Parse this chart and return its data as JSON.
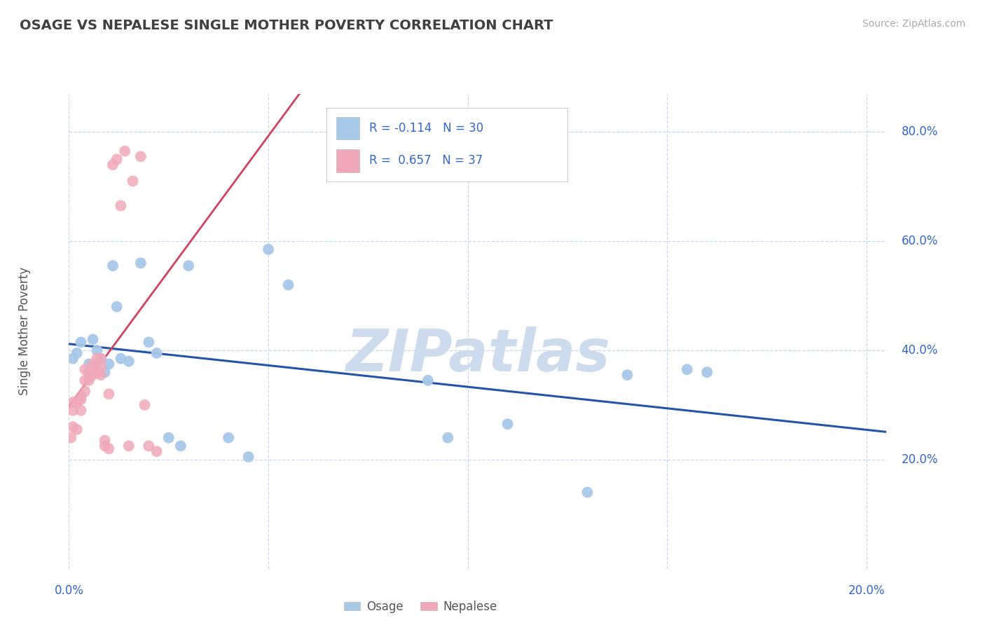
{
  "title": "OSAGE VS NEPALESE SINGLE MOTHER POVERTY CORRELATION CHART",
  "source": "Source: ZipAtlas.com",
  "ylabel": "Single Mother Poverty",
  "xlim": [
    0.0,
    0.205
  ],
  "ylim": [
    0.0,
    0.87
  ],
  "osage_R": -0.114,
  "osage_N": 30,
  "nepalese_R": 0.657,
  "nepalese_N": 37,
  "osage_color": "#a8c8e8",
  "nepalese_color": "#f0a8b8",
  "osage_line_color": "#2255aa",
  "nepalese_line_color": "#d04060",
  "text_blue": "#3366cc",
  "title_color": "#404040",
  "source_color": "#aaaaaa",
  "watermark_color": "#ccdcee",
  "grid_color": "#c8d8e8",
  "tick_color": "#3366cc",
  "osage_x": [
    0.001,
    0.002,
    0.003,
    0.005,
    0.006,
    0.007,
    0.008,
    0.009,
    0.01,
    0.011,
    0.012,
    0.013,
    0.015,
    0.018,
    0.02,
    0.022,
    0.025,
    0.028,
    0.03,
    0.04,
    0.045,
    0.05,
    0.055,
    0.09,
    0.095,
    0.11,
    0.13,
    0.14,
    0.155,
    0.16
  ],
  "osage_y": [
    0.385,
    0.395,
    0.415,
    0.375,
    0.42,
    0.4,
    0.385,
    0.36,
    0.375,
    0.555,
    0.48,
    0.385,
    0.38,
    0.56,
    0.415,
    0.395,
    0.24,
    0.225,
    0.555,
    0.24,
    0.205,
    0.585,
    0.52,
    0.345,
    0.24,
    0.265,
    0.14,
    0.355,
    0.365,
    0.36
  ],
  "nepalese_x": [
    0.0005,
    0.001,
    0.001,
    0.001,
    0.002,
    0.002,
    0.003,
    0.003,
    0.003,
    0.004,
    0.004,
    0.004,
    0.005,
    0.005,
    0.005,
    0.006,
    0.006,
    0.007,
    0.007,
    0.007,
    0.008,
    0.008,
    0.008,
    0.009,
    0.009,
    0.01,
    0.01,
    0.011,
    0.012,
    0.013,
    0.014,
    0.015,
    0.016,
    0.018,
    0.019,
    0.02,
    0.022
  ],
  "nepalese_y": [
    0.24,
    0.26,
    0.29,
    0.305,
    0.255,
    0.305,
    0.29,
    0.31,
    0.315,
    0.325,
    0.345,
    0.365,
    0.345,
    0.35,
    0.36,
    0.355,
    0.375,
    0.36,
    0.375,
    0.385,
    0.355,
    0.37,
    0.385,
    0.225,
    0.235,
    0.22,
    0.32,
    0.74,
    0.75,
    0.665,
    0.765,
    0.225,
    0.71,
    0.755,
    0.3,
    0.225,
    0.215
  ],
  "ytick_vals": [
    0.0,
    0.2,
    0.4,
    0.6,
    0.8
  ],
  "ytick_labels": [
    "",
    "20.0%",
    "40.0%",
    "60.0%",
    "80.0%"
  ],
  "xtick_vals": [
    0.0,
    0.05,
    0.1,
    0.15,
    0.2
  ],
  "xtick_labels_show": [
    "0.0%",
    "20.0%"
  ]
}
